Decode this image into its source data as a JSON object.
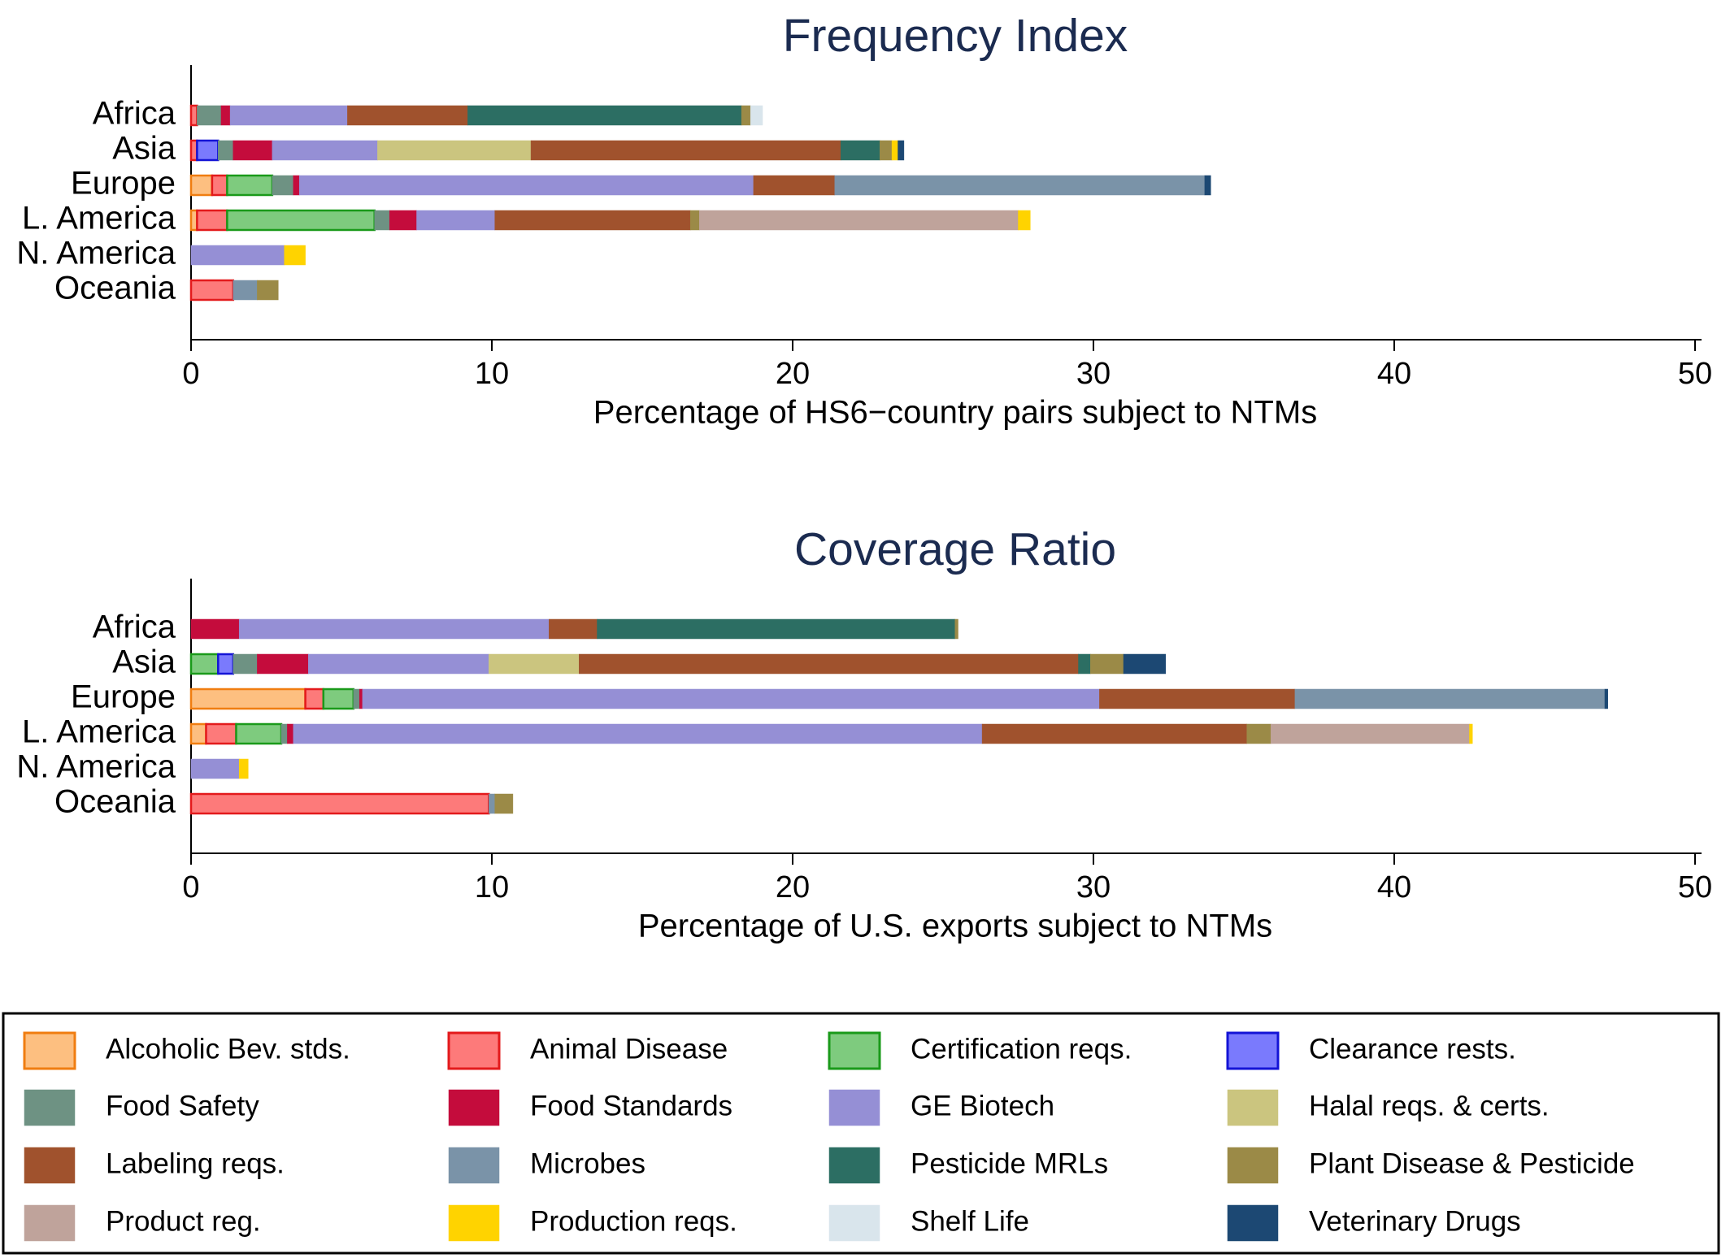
{
  "chart_data": [
    {
      "type": "bar",
      "orientation": "horizontal",
      "stacked": true,
      "title": "Frequency Index",
      "xlabel": "Percentage of HS6−country pairs subject to NTMs",
      "xlim": [
        0,
        50
      ],
      "xticks": [
        0,
        10,
        20,
        30,
        40,
        50
      ],
      "categories": [
        "Africa",
        "Asia",
        "Europe",
        "L. America",
        "N. America",
        "Oceania"
      ],
      "series": [
        {
          "name": "Alcoholic Bev. stds.",
          "values": [
            0,
            0,
            0.7,
            0.2,
            0,
            0
          ]
        },
        {
          "name": "Animal Disease",
          "values": [
            0.2,
            0.2,
            0.5,
            1.0,
            0,
            1.4
          ]
        },
        {
          "name": "Certification reqs.",
          "values": [
            0,
            0,
            1.5,
            4.9,
            0,
            0
          ]
        },
        {
          "name": "Clearance rests.",
          "values": [
            0,
            0.7,
            0,
            0,
            0,
            0
          ]
        },
        {
          "name": "Food Safety",
          "values": [
            0.8,
            0.5,
            0.7,
            0.5,
            0,
            0
          ]
        },
        {
          "name": "Food Standards",
          "values": [
            0.3,
            1.3,
            0.2,
            0.9,
            0,
            0
          ]
        },
        {
          "name": "GE Biotech",
          "values": [
            3.9,
            3.5,
            15.1,
            2.6,
            3.1,
            0
          ]
        },
        {
          "name": "Halal reqs. & certs.",
          "values": [
            0,
            5.1,
            0,
            0,
            0,
            0
          ]
        },
        {
          "name": "Labeling reqs.",
          "values": [
            4.0,
            10.3,
            2.7,
            6.5,
            0,
            0
          ]
        },
        {
          "name": "Microbes",
          "values": [
            0,
            0,
            12.3,
            0,
            0,
            0.8
          ]
        },
        {
          "name": "Pesticide MRLs",
          "values": [
            9.1,
            1.3,
            0,
            0,
            0,
            0
          ]
        },
        {
          "name": "Plant Disease & Pesticide",
          "values": [
            0.3,
            0.4,
            0,
            0.3,
            0,
            0.7
          ]
        },
        {
          "name": "Product reg.",
          "values": [
            0,
            0,
            0,
            10.6,
            0,
            0
          ]
        },
        {
          "name": "Production reqs.",
          "values": [
            0,
            0.2,
            0,
            0.4,
            0.7,
            0
          ]
        },
        {
          "name": "Shelf Life",
          "values": [
            0.4,
            0,
            0,
            0,
            0,
            0
          ]
        },
        {
          "name": "Veterinary Drugs",
          "values": [
            0,
            0.2,
            0.2,
            0,
            0,
            0
          ]
        }
      ]
    },
    {
      "type": "bar",
      "orientation": "horizontal",
      "stacked": true,
      "title": "Coverage Ratio",
      "xlabel": "Percentage of U.S. exports subject to NTMs",
      "xlim": [
        0,
        50
      ],
      "xticks": [
        0,
        10,
        20,
        30,
        40,
        50
      ],
      "categories": [
        "Africa",
        "Asia",
        "Europe",
        "L. America",
        "N. America",
        "Oceania"
      ],
      "series": [
        {
          "name": "Alcoholic Bev. stds.",
          "values": [
            0,
            0,
            3.8,
            0.5,
            0,
            0
          ]
        },
        {
          "name": "Animal Disease",
          "values": [
            0,
            0,
            0.6,
            1.0,
            0,
            9.9
          ]
        },
        {
          "name": "Certification reqs.",
          "values": [
            0,
            0.9,
            1.0,
            1.5,
            0,
            0
          ]
        },
        {
          "name": "Clearance rests.",
          "values": [
            0,
            0.5,
            0,
            0,
            0,
            0
          ]
        },
        {
          "name": "Food Safety",
          "values": [
            0,
            0.8,
            0.2,
            0.2,
            0,
            0
          ]
        },
        {
          "name": "Food Standards",
          "values": [
            1.6,
            1.7,
            0.1,
            0.2,
            0,
            0
          ]
        },
        {
          "name": "GE Biotech",
          "values": [
            10.3,
            6.0,
            24.5,
            22.9,
            1.6,
            0
          ]
        },
        {
          "name": "Halal reqs. & certs.",
          "values": [
            0,
            3.0,
            0,
            0,
            0,
            0
          ]
        },
        {
          "name": "Labeling reqs.",
          "values": [
            1.6,
            16.6,
            6.5,
            8.8,
            0,
            0
          ]
        },
        {
          "name": "Microbes",
          "values": [
            0,
            0,
            10.3,
            0,
            0,
            0.2
          ]
        },
        {
          "name": "Pesticide MRLs",
          "values": [
            11.9,
            0.4,
            0,
            0,
            0,
            0
          ]
        },
        {
          "name": "Plant Disease & Pesticide",
          "values": [
            0.1,
            1.1,
            0,
            0.8,
            0,
            0.6
          ]
        },
        {
          "name": "Product reg.",
          "values": [
            0,
            0,
            0,
            6.6,
            0,
            0
          ]
        },
        {
          "name": "Production reqs.",
          "values": [
            0,
            0,
            0,
            0.1,
            0.3,
            0
          ]
        },
        {
          "name": "Shelf Life",
          "values": [
            0,
            0,
            0,
            0,
            0,
            0
          ]
        },
        {
          "name": "Veterinary Drugs",
          "values": [
            0,
            1.4,
            0.1,
            0,
            0,
            0
          ]
        }
      ]
    }
  ],
  "legend": {
    "columns": 4,
    "items": [
      {
        "label": "Alcoholic Bev. stds.",
        "fill": "#fdbf80",
        "stroke": "#f07d10"
      },
      {
        "label": "Animal Disease",
        "fill": "#fd7a7a",
        "stroke": "#e31a1c"
      },
      {
        "label": "Certification reqs.",
        "fill": "#7ecb7e",
        "stroke": "#1a9a1a"
      },
      {
        "label": "Clearance rests.",
        "fill": "#7a7afd",
        "stroke": "#1414d6"
      },
      {
        "label": "Food Safety",
        "fill": "#6e9283",
        "stroke": "#6e9283"
      },
      {
        "label": "Food Standards",
        "fill": "#c40c3c",
        "stroke": "#c40c3c"
      },
      {
        "label": "GE Biotech",
        "fill": "#958fd5",
        "stroke": "#958fd5"
      },
      {
        "label": "Halal reqs. & certs.",
        "fill": "#cbc57f",
        "stroke": "#cbc57f"
      },
      {
        "label": "Labeling reqs.",
        "fill": "#a0522d",
        "stroke": "#a0522d"
      },
      {
        "label": "Microbes",
        "fill": "#7a93a8",
        "stroke": "#7a93a8"
      },
      {
        "label": "Pesticide MRLs",
        "fill": "#2c6e63",
        "stroke": "#2c6e63"
      },
      {
        "label": "Plant Disease & Pesticide",
        "fill": "#9b8a47",
        "stroke": "#9b8a47"
      },
      {
        "label": "Product reg.",
        "fill": "#bfa39b",
        "stroke": "#bfa39b"
      },
      {
        "label": "Production reqs.",
        "fill": "#ffd300",
        "stroke": "#ffd300"
      },
      {
        "label": "Shelf Life",
        "fill": "#d9e5ec",
        "stroke": "#d9e5ec"
      },
      {
        "label": "Veterinary Drugs",
        "fill": "#1c4873",
        "stroke": "#1c4873"
      }
    ]
  }
}
